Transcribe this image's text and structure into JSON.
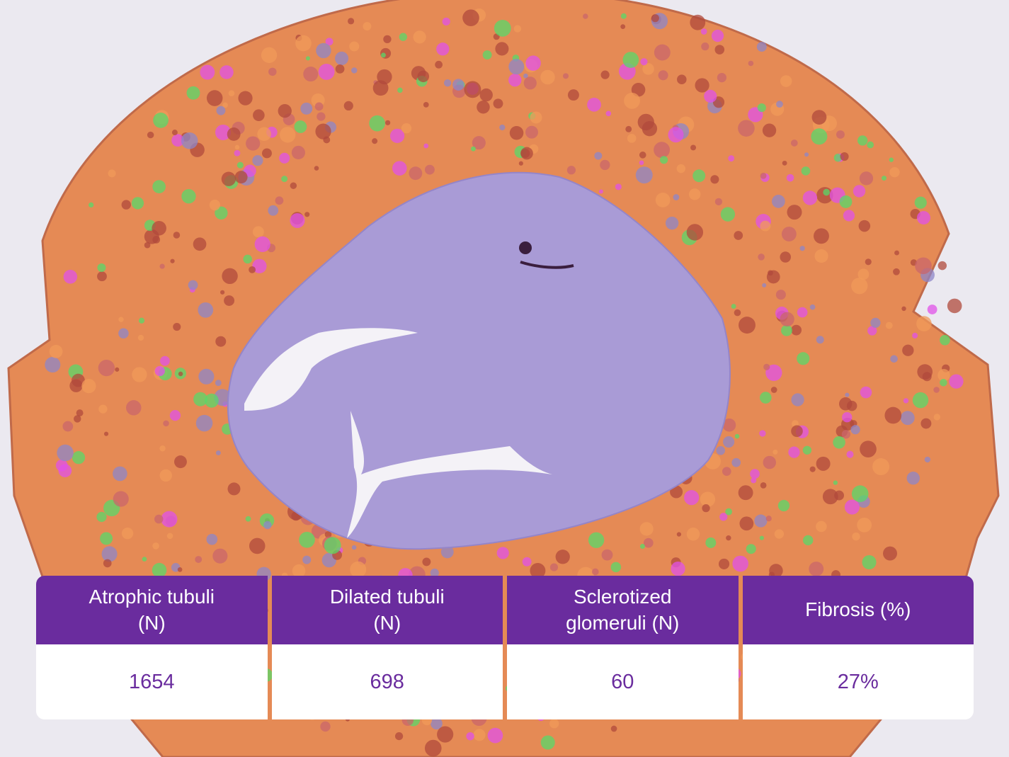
{
  "table": {
    "headers": [
      "Atrophic tubuli (N)",
      "Dilated tubuli (N)",
      "Sclerotized glomeruli (N)",
      "Fibrosis (%)"
    ],
    "rows": [
      [
        "1654",
        "698",
        "60",
        "27%"
      ]
    ]
  }
}
